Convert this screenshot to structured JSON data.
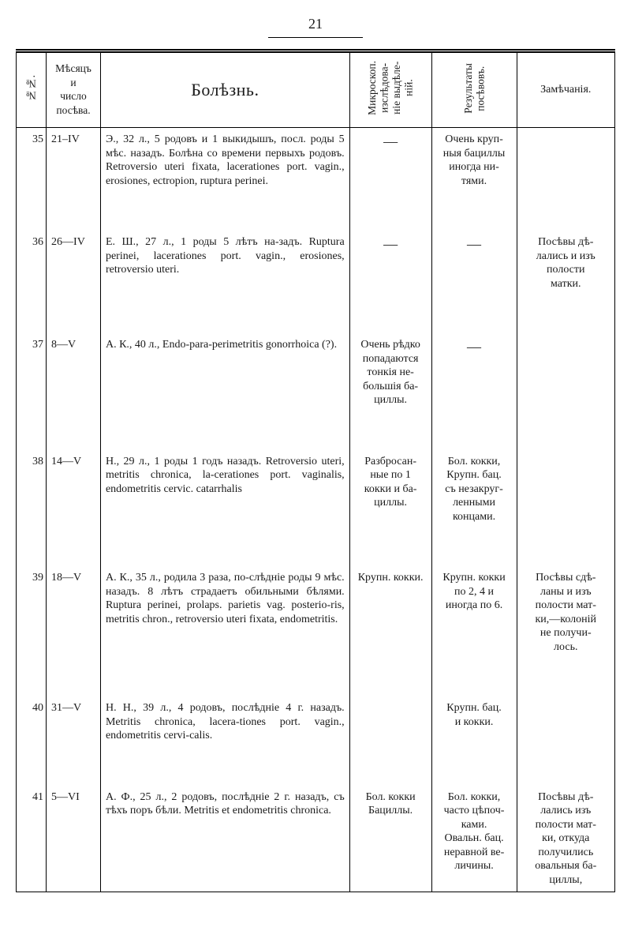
{
  "page_number": "21",
  "headers": {
    "num": "№№.",
    "month": "Мѣсяцъ\nи\nчисло\nпосѣва.",
    "disease": "Болѣзнь.",
    "micro": "Микроскоп.\nизслѣдова-\nніе выдѣле-\nній.",
    "results": "Результаты\nпосѣвовъ.",
    "notes": "Замѣчанія."
  },
  "rows": [
    {
      "num": "35",
      "month": "21–IV",
      "disease": "Э., 32 л., 5 родовъ и 1 выкидышъ, посл. роды 5 мѣс. назадъ. Болѣна со времени первыхъ родовъ. Retroversio uteri fixata, lacerationes port. vagin., erosiones, ectropion, ruptura perinei.",
      "micro": "—",
      "results": "Очень круп-\nныя бациллы\nиногда ни-\nтями.",
      "notes": ""
    },
    {
      "num": "36",
      "month": "26—IV",
      "disease": "Е. Ш., 27 л., 1 роды 5 лѣтъ на-задъ. Ruptura perinei, lacerationes port. vagin., erosiones, retroversio uteri.",
      "micro": "—",
      "results": "—",
      "notes": "Посѣвы дѣ-\nлались и изъ\nполости\nматки."
    },
    {
      "num": "37",
      "month": "8—V",
      "disease": "А. К., 40 л., Endo-para-perimetritis gonorrhoica (?).",
      "micro": "Очень рѣдко\nпопадаются\nтонкія не-\nбольшія ба-\nциллы.",
      "results": "—",
      "notes": ""
    },
    {
      "num": "38",
      "month": "14—V",
      "disease": "Н., 29 л., 1 роды 1 годъ назадъ. Retroversio uteri, metritis chronica, la-cerationes port. vaginalis, endometritis cervic. catarrhalis",
      "micro": "Разбросан-\nные по 1\nкокки и ба-\nциллы.",
      "results": "Бол. кокки,\nКрупн. бац.\nсъ незакруг-\nленными\nконцами.",
      "notes": ""
    },
    {
      "num": "39",
      "month": "18—V",
      "disease": "А. К., 35 л., родила 3 раза, по-слѣдніе роды 9 мѣс. назадъ. 8 лѣтъ страдаетъ обильными бѣлями. Ruptura perinei, prolaps. parietis vag. posterio-ris, metritis chron., retroversio uteri fixata, endometritis.",
      "micro": "Крупн. кокки.",
      "results": "Крупн. кокки\nпо 2, 4 и\nиногда по 6.",
      "notes": "Посѣвы сдѣ-\nланы и изъ\nполости мат-\nки,—колоній\nне получи-\nлось."
    },
    {
      "num": "40",
      "month": "31—V",
      "disease": "Н. Н., 39 л., 4 родовъ, послѣдніе 4 г. назадъ. Metritis chronica, lacera-tiones port. vagin., endometritis cervi-calis.",
      "micro": "",
      "results": "Крупн. бац.\nи кокки.",
      "notes": ""
    },
    {
      "num": "41",
      "month": "5—VI",
      "disease": "А. Ф., 25 л., 2 родовъ, послѣдніе 2 г. назадъ, съ тѣхъ поръ бѣли. Metritis et endometritis chronica.",
      "micro": "Бол. кокки\nБациллы.",
      "results": "Бол. кокки,\nчасто цѣпоч-\nками.\nОвальн. бац.\nнеравной ве-\nличины.",
      "notes": "Посѣвы дѣ-\nлались изъ\nполости мат-\nки, откуда\nполучились\nовальныя ба-\nциллы,"
    }
  ]
}
